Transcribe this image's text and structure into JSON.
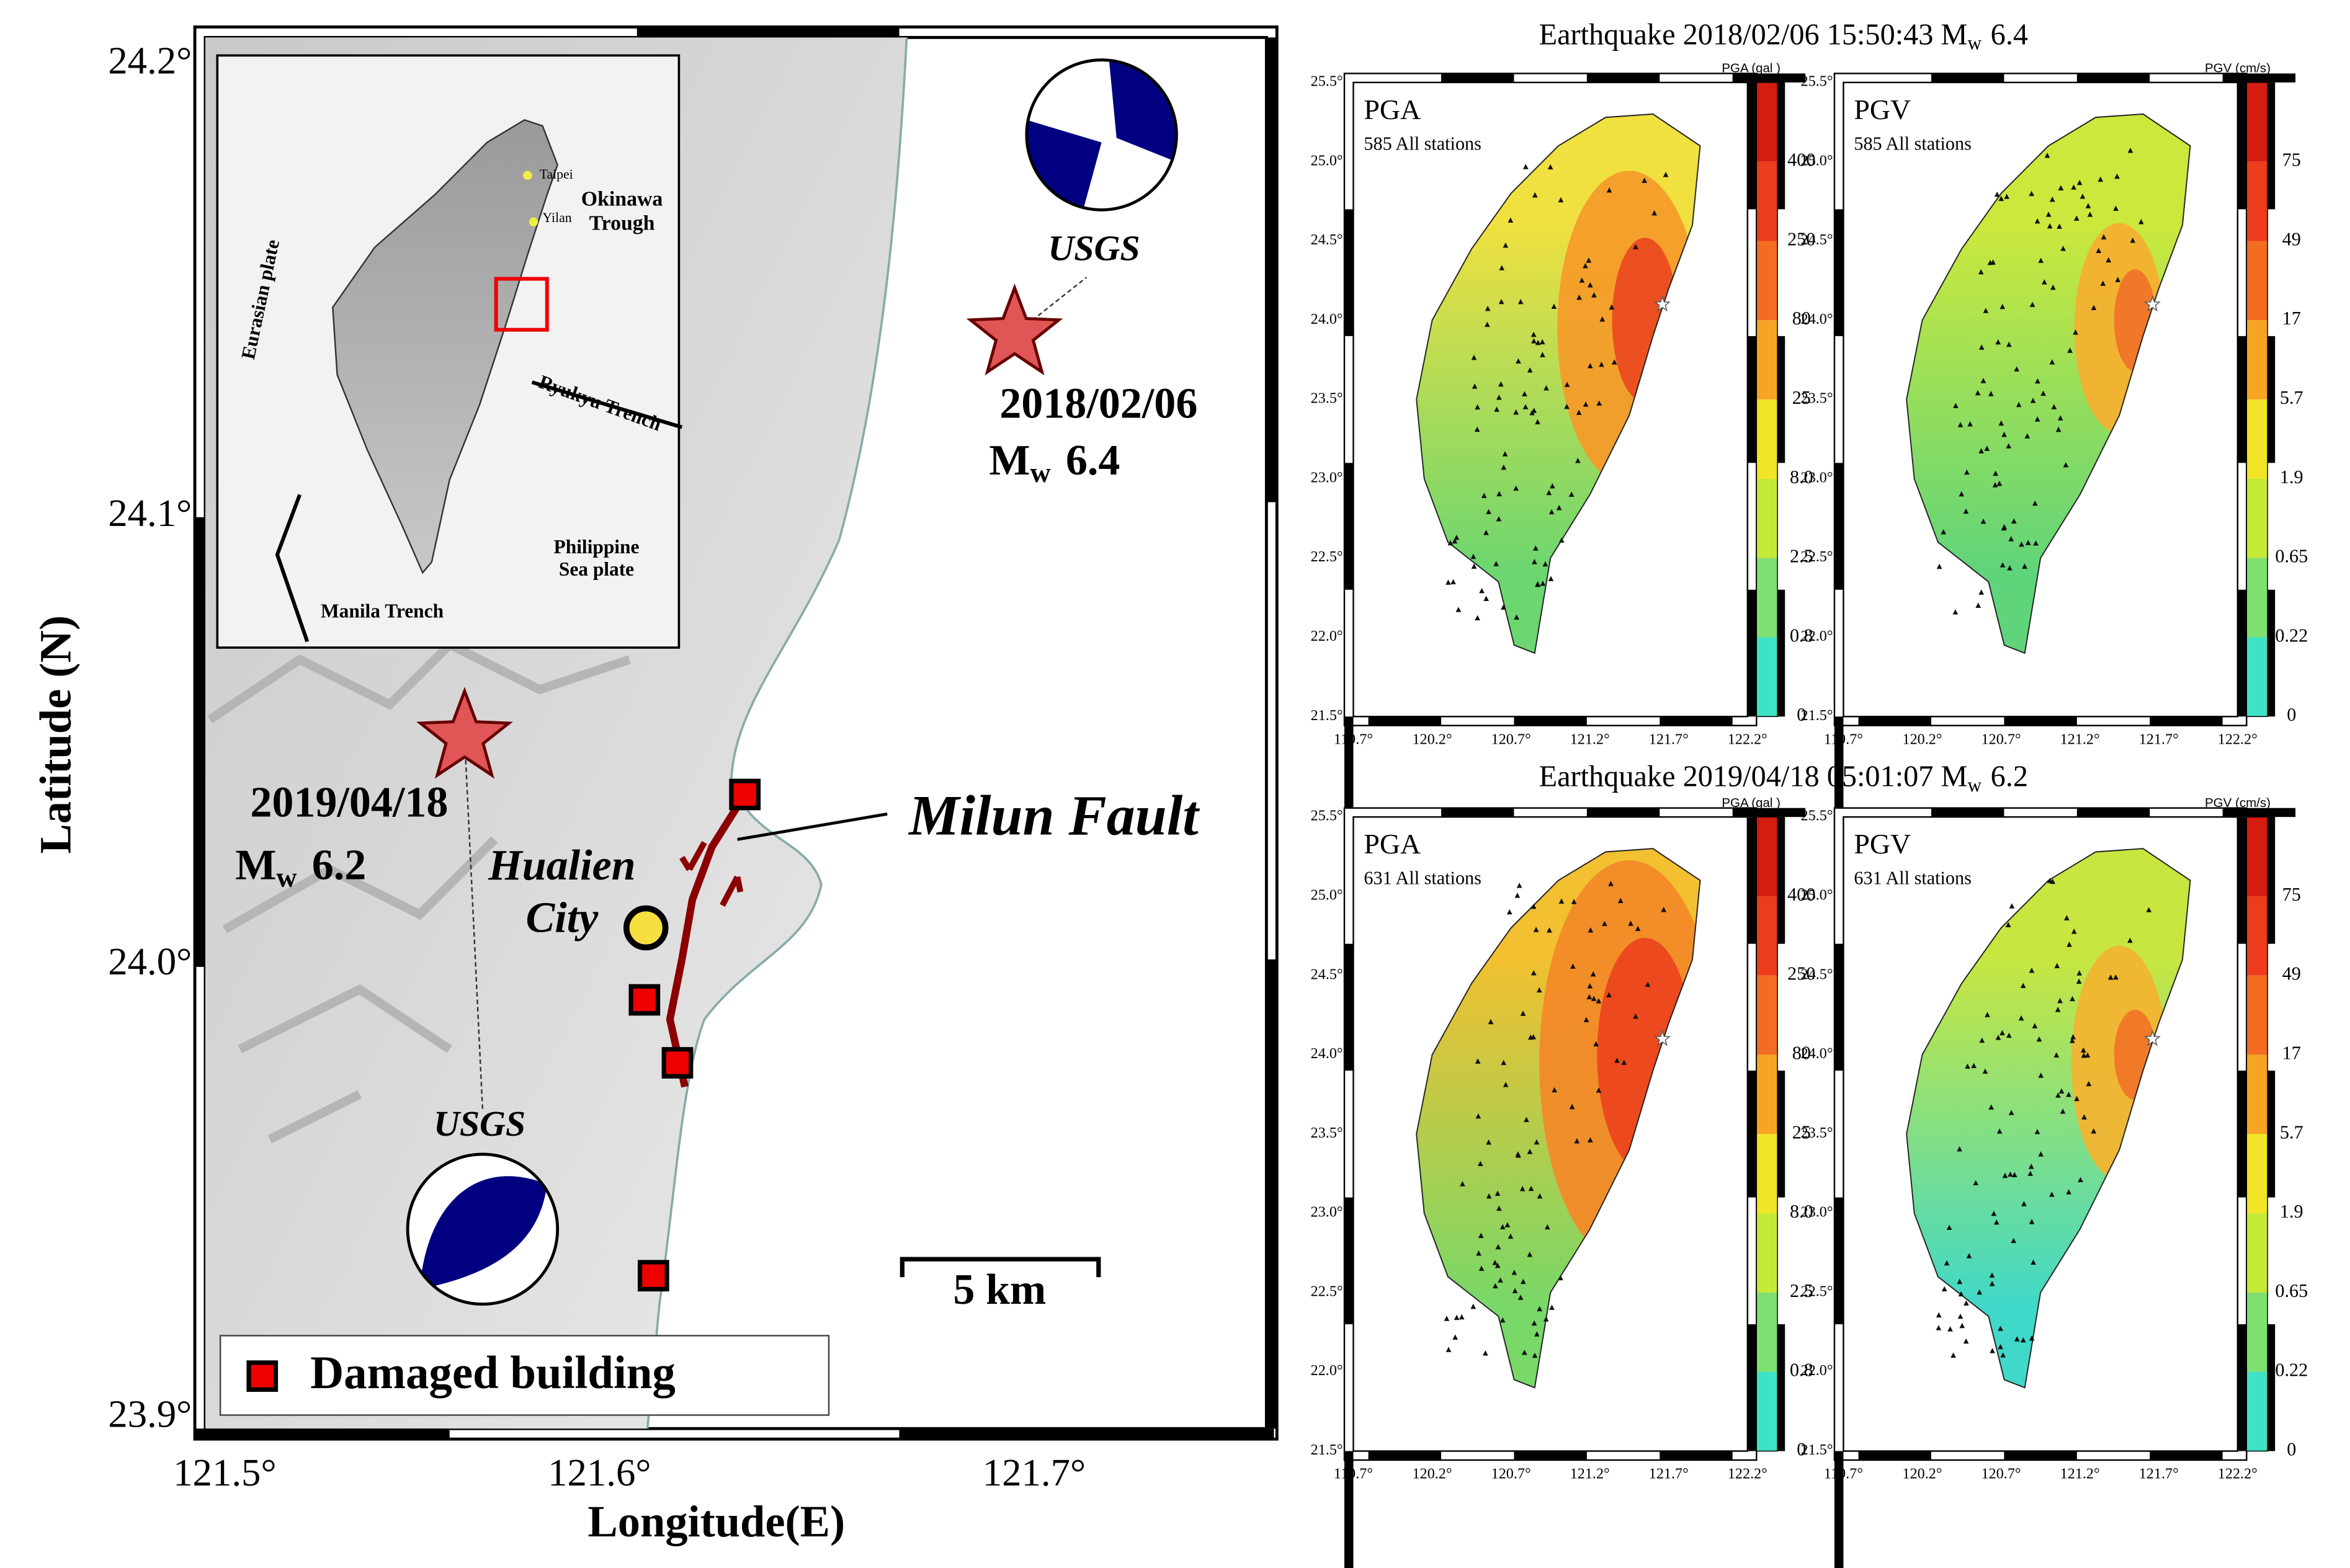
{
  "main_map": {
    "axis_labels": {
      "y": "Latitude (N)",
      "x": "Longitude(E)"
    },
    "yticks": [
      "24.2°",
      "24.1°",
      "24.0°",
      "23.9°"
    ],
    "xticks": [
      "121.5°",
      "121.6°",
      "121.7°"
    ],
    "events": [
      {
        "date": "2018/02/06",
        "magnitude_symbol": "M",
        "magnitude_sub": "w",
        "magnitude": "6.4",
        "source": "USGS"
      },
      {
        "date": "2019/04/18",
        "magnitude_symbol": "M",
        "magnitude_sub": "w",
        "magnitude": "6.2",
        "source": "USGS"
      }
    ],
    "fault": "Milun Fault",
    "city": [
      "Hualien",
      "City"
    ],
    "scale_bar": "5 km",
    "legend": "Damaged building",
    "inset_labels": [
      "Taipei",
      "Yilan",
      "Okinawa",
      "Trough",
      "Eurasian plate",
      "Ryukyu Trench",
      "Philippine",
      "Sea plate",
      "Manila Trench"
    ]
  },
  "ground_motion": {
    "rows": [
      {
        "title": {
          "prefix": "Earthquake 2018/02/06 15:50:43 M",
          "sub": "w",
          "magnitude": "6.4"
        },
        "panels": [
          {
            "label": "PGA",
            "stations": "585 All stations",
            "unit": "PGA (gal )",
            "scale": [
              "400",
              "250",
              "80",
              "25",
              "8.0",
              "2.5",
              "0.8",
              "0"
            ]
          },
          {
            "label": "PGV",
            "stations": "585 All stations",
            "unit": "PGV (cm/s)",
            "scale": [
              "75",
              "49",
              "17",
              "5.7",
              "1.9",
              "0.65",
              "0.22",
              "0"
            ]
          }
        ]
      },
      {
        "title": {
          "prefix": "Earthquake 2019/04/18 05:01:07 M",
          "sub": "w",
          "magnitude": "6.2"
        },
        "panels": [
          {
            "label": "PGA",
            "stations": "631 All stations",
            "unit": "PGA (gal )",
            "scale": [
              "400",
              "250",
              "80",
              "25",
              "8.0",
              "2.5",
              "0.8",
              "0"
            ]
          },
          {
            "label": "PGV",
            "stations": "631 All stations",
            "unit": "PGV (cm/s)",
            "scale": [
              "75",
              "49",
              "17",
              "5.7",
              "1.9",
              "0.65",
              "0.22",
              "0"
            ]
          }
        ]
      }
    ],
    "yticks": [
      "25.5°",
      "25.0°",
      "24.5°",
      "24.0°",
      "23.5°",
      "23.0°",
      "22.5°",
      "22.0°",
      "21.5°"
    ],
    "xticks": [
      "119.7°",
      "120.2°",
      "120.7°",
      "121.2°",
      "121.7°",
      "122.2°"
    ]
  }
}
